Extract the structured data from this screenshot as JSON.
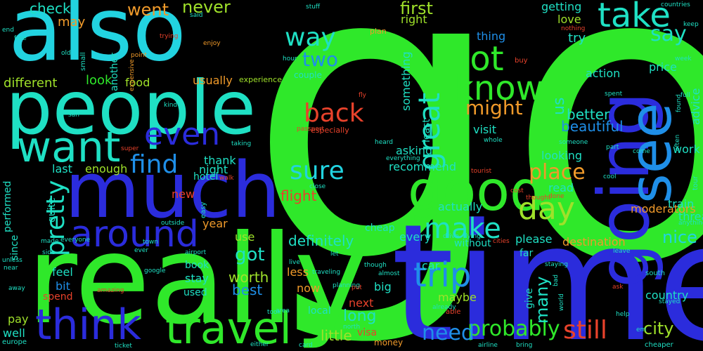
{
  "palette": {
    "green": "#2fe82a",
    "cyan": "#22d3e0",
    "blue": "#2b2cdc",
    "teal": "#1fe0c4",
    "skyblue": "#1f8fe8",
    "orange": "#f09a2a",
    "red": "#e8422b",
    "lime": "#9fe12a"
  },
  "words": [
    {
      "t": "go"
    },
    {
      "t": "time"
    },
    {
      "t": "really"
    },
    {
      "t": "also"
    },
    {
      "t": "people"
    },
    {
      "t": "much"
    },
    {
      "t": "going"
    },
    {
      "t": "see"
    },
    {
      "t": "good"
    },
    {
      "t": "travel"
    },
    {
      "t": "think"
    },
    {
      "t": "want"
    },
    {
      "t": "around"
    },
    {
      "t": "know"
    },
    {
      "t": "lot"
    },
    {
      "t": "take"
    },
    {
      "t": "day"
    },
    {
      "t": "trip"
    },
    {
      "t": "even"
    },
    {
      "t": "make"
    },
    {
      "t": "still"
    },
    {
      "t": "pretty"
    },
    {
      "t": "great"
    },
    {
      "t": "find"
    },
    {
      "t": "sure"
    },
    {
      "t": "back"
    },
    {
      "t": "way"
    },
    {
      "t": "probably"
    },
    {
      "t": "say"
    },
    {
      "t": "need"
    },
    {
      "t": "place"
    },
    {
      "t": "two"
    },
    {
      "t": "might"
    },
    {
      "t": "many"
    },
    {
      "t": "nice"
    },
    {
      "t": "city"
    },
    {
      "t": "got"
    },
    {
      "t": "first"
    },
    {
      "t": "went"
    },
    {
      "t": "never"
    },
    {
      "t": "check"
    },
    {
      "t": "definitely"
    },
    {
      "t": "long"
    },
    {
      "t": "flight"
    },
    {
      "t": "little"
    },
    {
      "t": "worth"
    },
    {
      "t": "best"
    },
    {
      "t": "us"
    },
    {
      "t": "better"
    },
    {
      "t": "beautiful"
    },
    {
      "t": "look"
    },
    {
      "t": "food"
    },
    {
      "t": "different"
    },
    {
      "t": "usually"
    },
    {
      "t": "may"
    },
    {
      "t": "right"
    },
    {
      "t": "something"
    },
    {
      "t": "thing"
    },
    {
      "t": "try"
    },
    {
      "t": "love"
    },
    {
      "t": "getting"
    },
    {
      "t": "price"
    },
    {
      "t": "action"
    },
    {
      "t": "advice"
    },
    {
      "t": "visit"
    },
    {
      "t": "looking"
    },
    {
      "t": "work"
    },
    {
      "t": "asking"
    },
    {
      "t": "recommend"
    },
    {
      "t": "read"
    },
    {
      "t": "actually"
    },
    {
      "t": "please"
    },
    {
      "t": "destination"
    },
    {
      "t": "moderators"
    },
    {
      "t": "train"
    },
    {
      "t": "thread"
    },
    {
      "t": "country"
    },
    {
      "t": "maybe"
    },
    {
      "t": "car"
    },
    {
      "t": "big"
    },
    {
      "t": "next"
    },
    {
      "t": "less"
    },
    {
      "t": "now"
    },
    {
      "t": "last"
    },
    {
      "t": "enough"
    },
    {
      "t": "thank"
    },
    {
      "t": "night"
    },
    {
      "t": "hotel"
    },
    {
      "t": "new"
    },
    {
      "t": "use"
    },
    {
      "t": "year"
    },
    {
      "t": "feel"
    },
    {
      "t": "bit"
    },
    {
      "t": "spend"
    },
    {
      "t": "pay"
    },
    {
      "t": "well"
    },
    {
      "t": "stay"
    },
    {
      "t": "used"
    },
    {
      "t": "book"
    },
    {
      "t": "without"
    },
    {
      "t": "every"
    },
    {
      "t": "far"
    },
    {
      "t": "cheap"
    },
    {
      "t": "give"
    },
    {
      "t": "least"
    },
    {
      "t": "quite"
    },
    {
      "t": "since"
    },
    {
      "t": "performed"
    },
    {
      "t": "another"
    },
    {
      "t": "couple"
    },
    {
      "t": "especially"
    },
    {
      "t": "visa"
    },
    {
      "t": "money"
    },
    {
      "t": "plan"
    },
    {
      "t": "experience"
    },
    {
      "t": "expensive"
    },
    {
      "t": "small"
    },
    {
      "t": "trying"
    },
    {
      "t": "point"
    },
    {
      "t": "enjoy"
    },
    {
      "t": "free"
    },
    {
      "t": "end"
    },
    {
      "t": "old"
    },
    {
      "t": "said"
    },
    {
      "t": "stuff"
    },
    {
      "t": "hour"
    },
    {
      "t": "buy"
    },
    {
      "t": "nothing"
    },
    {
      "t": "countries"
    },
    {
      "t": "keep"
    },
    {
      "t": "week"
    },
    {
      "t": "found"
    },
    {
      "t": "full"
    },
    {
      "t": "often"
    },
    {
      "t": "spent"
    },
    {
      "t": "someone"
    },
    {
      "t": "part"
    },
    {
      "t": "come"
    },
    {
      "t": "tour"
    },
    {
      "t": "cool"
    },
    {
      "t": "cost"
    },
    {
      "t": "thought"
    },
    {
      "t": "done"
    },
    {
      "t": "tourist"
    },
    {
      "t": "staying"
    },
    {
      "t": "anything"
    },
    {
      "t": "leave"
    },
    {
      "t": "south"
    },
    {
      "t": "stayed"
    },
    {
      "t": "help"
    },
    {
      "t": "cheaper"
    },
    {
      "t": "ask"
    },
    {
      "t": "world"
    },
    {
      "t": "bad"
    },
    {
      "t": "bring"
    },
    {
      "t": "airline"
    },
    {
      "t": "card"
    },
    {
      "t": "either"
    },
    {
      "t": "ticket"
    },
    {
      "t": "europe"
    },
    {
      "t": "away"
    },
    {
      "t": "near"
    },
    {
      "t": "unless"
    },
    {
      "t": "made"
    },
    {
      "t": "side"
    },
    {
      "t": "everyone"
    },
    {
      "t": "ever"
    },
    {
      "t": "airport"
    },
    {
      "t": "google"
    },
    {
      "t": "amazing"
    },
    {
      "t": "town"
    },
    {
      "t": "outside"
    },
    {
      "t": "easy"
    },
    {
      "t": "walk"
    },
    {
      "t": "taking"
    },
    {
      "t": "super"
    },
    {
      "t": "san"
    },
    {
      "t": "kind"
    },
    {
      "t": "passport"
    },
    {
      "t": "heard"
    },
    {
      "t": "everything"
    },
    {
      "t": "whole"
    },
    {
      "t": "fly"
    },
    {
      "t": "close"
    },
    {
      "t": "let"
    },
    {
      "t": "live"
    },
    {
      "t": "traveling"
    },
    {
      "t": "planning"
    },
    {
      "t": "put"
    },
    {
      "t": "took"
    },
    {
      "t": "area"
    },
    {
      "t": "local"
    },
    {
      "t": "north"
    },
    {
      "t": "though"
    },
    {
      "t": "almost"
    },
    {
      "t": "already"
    },
    {
      "t": "able"
    },
    {
      "t": "drive"
    },
    {
      "t": "flying"
    },
    {
      "t": "cities"
    },
    {
      "t": "em"
    }
  ]
}
